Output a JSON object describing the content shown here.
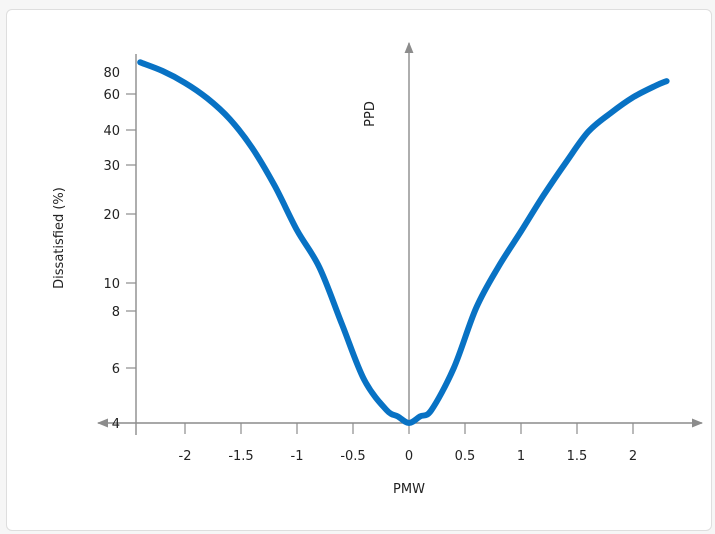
{
  "chart_data": {
    "type": "line",
    "xlabel": "PMW",
    "ylabel": "Dissatisfied (%)",
    "center_axis_label": "PPD",
    "x_ticks": [
      -2,
      -1.5,
      -1,
      -0.5,
      0,
      0.5,
      1,
      1.5,
      2
    ],
    "x_tick_labels": [
      "-2",
      "-1.5",
      "-1",
      "-0.5",
      "0",
      "0.5",
      "1",
      "1.5",
      "2"
    ],
    "y_ticks": [
      4,
      6,
      8,
      10,
      20,
      30,
      40,
      60,
      80
    ],
    "y_tick_labels": [
      "4",
      "6",
      "8",
      "10",
      "20",
      "30",
      "40",
      "60",
      "80"
    ],
    "xlim": [
      -2.4,
      2.3
    ],
    "y_scale": "log",
    "series": [
      {
        "color": "#0872c4",
        "x": [
          -2.4,
          -2.2,
          -2.0,
          -1.8,
          -1.6,
          -1.4,
          -1.2,
          -1.0,
          -0.8,
          -0.6,
          -0.4,
          -0.2,
          -0.1,
          0.0,
          0.1,
          0.2,
          0.4,
          0.6,
          0.8,
          1.0,
          1.2,
          1.4,
          1.6,
          1.8,
          2.0,
          2.2,
          2.3
        ],
        "y": [
          90.8,
          81.1,
          69.4,
          57.1,
          45.2,
          34.5,
          25.3,
          17.0,
          11.7,
          7.5,
          5.5,
          4.4,
          4.2,
          4.0,
          4.2,
          4.4,
          6.0,
          8.2,
          11.8,
          16.8,
          23.3,
          30.6,
          39.4,
          48.4,
          57.8,
          66.8,
          71.0
        ]
      }
    ]
  }
}
